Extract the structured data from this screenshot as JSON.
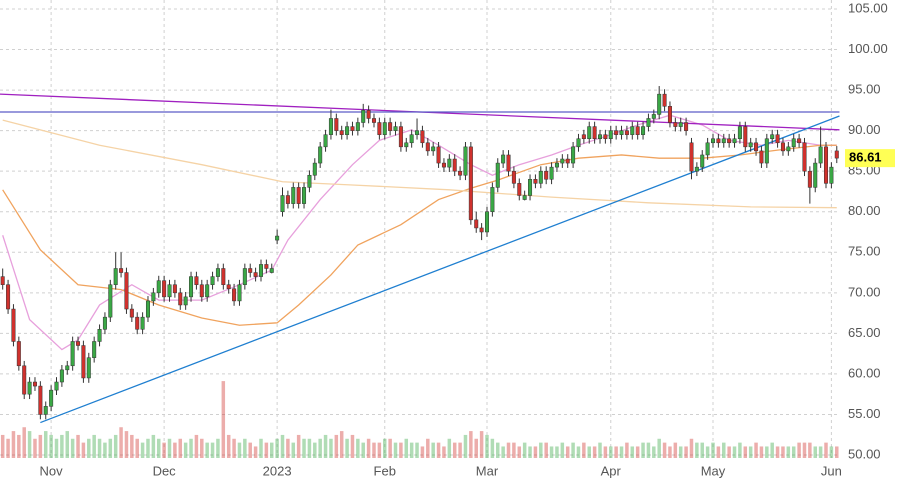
{
  "chart_data": {
    "type": "candlestick",
    "xlim": [
      -0.5,
      155.6
    ],
    "ylim": [
      50,
      105
    ],
    "yticks": [
      {
        "value": 50,
        "label": "50.00"
      },
      {
        "value": 55,
        "label": "55.00"
      },
      {
        "value": 60,
        "label": "60.00"
      },
      {
        "value": 65,
        "label": "65.00"
      },
      {
        "value": 70,
        "label": "70.00"
      },
      {
        "value": 75,
        "label": "75.00"
      },
      {
        "value": 80,
        "label": "80.00"
      },
      {
        "value": 85,
        "label": "85.00"
      },
      {
        "value": 90,
        "label": "90.00"
      },
      {
        "value": 95,
        "label": "95.00"
      },
      {
        "value": 100,
        "label": "100.00"
      },
      {
        "value": 105,
        "label": "105.00"
      }
    ],
    "xticks": [
      {
        "value": 9,
        "label": "Nov"
      },
      {
        "value": 30,
        "label": "Dec"
      },
      {
        "value": 51,
        "label": "2023"
      },
      {
        "value": 71,
        "label": "Feb"
      },
      {
        "value": 90,
        "label": "Mar"
      },
      {
        "value": 113,
        "label": "Apr"
      },
      {
        "value": 132,
        "label": "May"
      },
      {
        "value": 154,
        "label": "Jun"
      }
    ],
    "grid": true,
    "up_color": "#3aa845",
    "down_color": "#d0312d",
    "candles": [
      [
        72,
        73,
        70.4,
        71
      ],
      [
        71,
        71.6,
        67.4,
        68
      ],
      [
        68,
        68.6,
        63.4,
        64
      ],
      [
        64,
        64.6,
        60.4,
        61
      ],
      [
        61,
        61.6,
        56.9,
        57.5
      ],
      [
        57.5,
        59.6,
        56.9,
        59
      ],
      [
        59,
        59.6,
        57.9,
        58.5
      ],
      [
        58.5,
        59.1,
        54.4,
        55
      ],
      [
        55,
        56.6,
        54.4,
        56
      ],
      [
        56,
        58.6,
        55.4,
        58
      ],
      [
        58,
        59.6,
        57.4,
        59
      ],
      [
        59,
        61.1,
        58.4,
        60.5
      ],
      [
        60.5,
        61.6,
        59.9,
        61
      ],
      [
        61,
        64.6,
        60.4,
        64
      ],
      [
        64,
        64.6,
        62.9,
        63.5
      ],
      [
        63.5,
        64.1,
        58.9,
        59.5
      ],
      [
        59.5,
        62.6,
        58.9,
        62
      ],
      [
        62,
        64.6,
        61.4,
        64
      ],
      [
        64,
        66.1,
        63.4,
        65.5
      ],
      [
        65.5,
        67.6,
        64.9,
        67
      ],
      [
        67,
        71.6,
        66.4,
        71
      ],
      [
        71,
        75,
        70.4,
        73
      ],
      [
        73,
        75,
        71.9,
        72.5
      ],
      [
        72.5,
        73.1,
        67.4,
        68
      ],
      [
        68,
        68.6,
        66.4,
        67
      ],
      [
        67,
        67.6,
        64.9,
        65.5
      ],
      [
        65.5,
        67.6,
        64.9,
        67
      ],
      [
        67,
        69.6,
        66.4,
        69
      ],
      [
        69,
        70.6,
        68.4,
        70
      ],
      [
        70,
        72.1,
        69.4,
        71.5
      ],
      [
        71.5,
        72.1,
        68.9,
        69.5
      ],
      [
        69.5,
        71.6,
        68.9,
        71
      ],
      [
        71,
        71.6,
        69.4,
        70
      ],
      [
        70,
        70.6,
        67.9,
        68.5
      ],
      [
        68.5,
        70.1,
        67.9,
        69.5
      ],
      [
        69.5,
        72.6,
        68.9,
        72
      ],
      [
        72,
        72.6,
        70.4,
        71
      ],
      [
        71,
        71.6,
        68.9,
        69.5
      ],
      [
        69.5,
        71.6,
        68.9,
        71
      ],
      [
        71,
        72.6,
        70.4,
        72
      ],
      [
        72,
        73.6,
        71.4,
        73
      ],
      [
        73,
        73.6,
        70.4,
        71
      ],
      [
        71,
        71.6,
        69.9,
        70.5
      ],
      [
        70.5,
        71.1,
        68.4,
        69
      ],
      [
        69,
        71.6,
        68.4,
        71
      ],
      [
        71,
        73.6,
        70.4,
        73
      ],
      [
        73,
        73.6,
        71.9,
        72.5
      ],
      [
        72.5,
        73.1,
        71.4,
        72
      ],
      [
        72,
        74.1,
        71.4,
        73.5
      ],
      [
        73.5,
        74.1,
        72.4,
        73
      ],
      [
        72.5,
        73.6,
        72.4,
        73
      ],
      [
        76.5,
        77.8,
        76,
        77
      ],
      [
        80,
        83,
        79.4,
        82
      ],
      [
        82,
        82.6,
        80.4,
        81
      ],
      [
        81,
        83.6,
        80.4,
        83
      ],
      [
        83,
        83.6,
        80.4,
        81
      ],
      [
        81,
        83.6,
        80.4,
        83
      ],
      [
        83,
        85.1,
        82.4,
        84.5
      ],
      [
        84.5,
        86.6,
        83.9,
        86
      ],
      [
        86,
        88.6,
        85.4,
        88
      ],
      [
        88,
        90.1,
        87.4,
        89.5
      ],
      [
        89.5,
        92.6,
        88.9,
        91.5
      ],
      [
        91.5,
        92.1,
        89.4,
        90
      ],
      [
        90,
        90.6,
        88.9,
        89.5
      ],
      [
        89.5,
        91.1,
        88.9,
        90.5
      ],
      [
        90.5,
        91.1,
        89.4,
        90
      ],
      [
        90,
        91.6,
        89.4,
        91
      ],
      [
        91,
        93.3,
        90.4,
        92.5
      ],
      [
        92.5,
        93.1,
        90.9,
        91.5
      ],
      [
        91.5,
        92.1,
        90.4,
        91
      ],
      [
        91,
        91.6,
        88.9,
        89.5
      ],
      [
        89.5,
        91.6,
        88.9,
        91
      ],
      [
        91,
        91.6,
        89.4,
        90
      ],
      [
        90,
        91.1,
        89.4,
        90.5
      ],
      [
        90.5,
        91.1,
        87.4,
        88
      ],
      [
        88,
        89.1,
        87.4,
        88.5
      ],
      [
        88.5,
        90.1,
        87.9,
        89.5
      ],
      [
        89.5,
        91.5,
        88.9,
        90
      ],
      [
        90,
        90.6,
        87.9,
        88.5
      ],
      [
        88.5,
        89.1,
        86.9,
        87.5
      ],
      [
        87.5,
        88.6,
        86.9,
        88
      ],
      [
        88,
        88.6,
        85.4,
        86
      ],
      [
        86,
        86.6,
        84.9,
        85.5
      ],
      [
        85.5,
        87.1,
        84.9,
        86.5
      ],
      [
        86.5,
        87.1,
        84.4,
        85
      ],
      [
        85,
        85.6,
        83.9,
        84.5
      ],
      [
        84.5,
        88.6,
        83.9,
        88
      ],
      [
        88,
        88.6,
        78.4,
        79
      ],
      [
        79,
        80,
        77.4,
        78
      ],
      [
        78,
        78.6,
        76.5,
        77.5
      ],
      [
        77.5,
        80.6,
        76.9,
        80
      ],
      [
        80,
        83.6,
        79.4,
        83
      ],
      [
        83,
        86.6,
        82.4,
        86
      ],
      [
        86,
        87.6,
        85.4,
        87
      ],
      [
        87,
        87.6,
        84.4,
        85
      ],
      [
        85,
        85.6,
        82.9,
        83.5
      ],
      [
        83.5,
        84.1,
        81.4,
        82
      ],
      [
        81.5,
        82.6,
        81.4,
        82
      ],
      [
        82,
        84.6,
        81.4,
        84
      ],
      [
        84,
        84.6,
        82.9,
        83.5
      ],
      [
        83.5,
        85.6,
        82.9,
        85
      ],
      [
        85,
        85.6,
        83.4,
        84
      ],
      [
        84,
        86.1,
        83.4,
        85.5
      ],
      [
        85.5,
        86.6,
        84.9,
        86
      ],
      [
        86,
        87.1,
        85.4,
        86.5
      ],
      [
        86.5,
        87.1,
        85.4,
        86
      ],
      [
        86,
        88.6,
        85.4,
        88
      ],
      [
        88,
        89.6,
        87.4,
        89
      ],
      [
        89.5,
        90.1,
        88.4,
        89
      ],
      [
        89,
        91.1,
        88.4,
        90.5
      ],
      [
        90.5,
        91.1,
        88.4,
        89
      ],
      [
        89,
        90.1,
        88.4,
        89.5
      ],
      [
        89.5,
        90.1,
        88.4,
        89
      ],
      [
        89,
        90.6,
        88.4,
        90
      ],
      [
        90,
        90.6,
        88.9,
        89.5
      ],
      [
        89.5,
        90.6,
        88.9,
        90
      ],
      [
        90,
        90.6,
        88.9,
        89.5
      ],
      [
        89.5,
        91.1,
        88.9,
        90.5
      ],
      [
        90.5,
        91.1,
        88.9,
        89.5
      ],
      [
        89.5,
        91.1,
        88.9,
        90.5
      ],
      [
        90.5,
        92.1,
        89.9,
        91.5
      ],
      [
        91.5,
        92.6,
        90.9,
        92
      ],
      [
        92,
        95.5,
        91.4,
        94.5
      ],
      [
        94.5,
        95.1,
        92.4,
        93
      ],
      [
        93,
        93.6,
        90.4,
        91
      ],
      [
        91,
        91.6,
        89.9,
        90.5
      ],
      [
        90.5,
        91.6,
        89.9,
        91
      ],
      [
        91,
        91.6,
        89.4,
        90
      ],
      [
        88.5,
        89.1,
        84,
        85
      ],
      [
        85,
        86.1,
        84.4,
        85.5
      ],
      [
        85.5,
        87.6,
        84.9,
        87
      ],
      [
        87,
        89.1,
        86.4,
        88.5
      ],
      [
        88.5,
        89.6,
        87.9,
        89
      ],
      [
        89,
        89.6,
        87.9,
        88.5
      ],
      [
        88.5,
        89.6,
        87.9,
        89
      ],
      [
        89,
        89.6,
        87.9,
        88.5
      ],
      [
        88.5,
        89.6,
        87.9,
        89
      ],
      [
        89,
        91.1,
        88.4,
        90.5
      ],
      [
        90.5,
        91.1,
        87.4,
        88
      ],
      [
        88,
        89.1,
        87.4,
        88.5
      ],
      [
        88.5,
        89.1,
        86.9,
        87.5
      ],
      [
        87.5,
        88.1,
        85.4,
        86
      ],
      [
        86,
        89.6,
        85.4,
        89
      ],
      [
        89,
        90.1,
        88.4,
        89.5
      ],
      [
        89.5,
        90.1,
        87.9,
        88.5
      ],
      [
        88.5,
        89.1,
        86.9,
        87.5
      ],
      [
        87.5,
        88.6,
        86.9,
        88
      ],
      [
        88,
        89.6,
        87.4,
        89
      ],
      [
        89,
        89.6,
        87.9,
        88.5
      ],
      [
        88.5,
        89.1,
        84.4,
        85
      ],
      [
        85,
        85.6,
        81,
        83
      ],
      [
        83,
        86.6,
        82.4,
        86
      ],
      [
        86,
        90.5,
        85.4,
        88
      ],
      [
        88,
        88.6,
        82.9,
        83.5
      ],
      [
        83.5,
        86.1,
        82.9,
        85.5
      ],
      [
        87.5,
        88.1,
        86,
        86.61
      ]
    ],
    "volume": [
      6,
      5,
      7,
      6,
      8,
      7,
      5,
      6,
      7,
      6,
      5,
      6,
      7,
      5,
      6,
      4,
      5,
      6,
      5,
      4,
      5,
      6,
      8,
      7,
      6,
      5,
      4,
      5,
      6,
      5,
      4,
      5,
      4,
      5,
      4,
      5,
      6,
      5,
      4,
      4,
      5,
      20,
      6,
      5,
      4,
      5,
      4,
      3,
      5,
      4,
      4,
      5,
      6,
      5,
      4,
      6,
      5,
      5,
      4,
      5,
      6,
      5,
      6,
      7,
      5,
      6,
      5,
      4,
      5,
      4,
      4,
      5,
      5,
      4,
      4,
      5,
      4,
      4,
      3,
      5,
      4,
      4,
      3,
      5,
      4,
      4,
      6,
      7,
      5,
      7,
      6,
      5,
      4,
      3,
      4,
      4,
      3,
      4,
      3,
      3,
      4,
      4,
      3,
      3,
      4,
      3,
      4,
      3,
      4,
      3,
      3,
      4,
      3,
      3,
      3,
      3,
      4,
      3,
      3,
      4,
      4,
      3,
      5,
      4,
      3,
      4,
      3,
      3,
      5,
      4,
      4,
      3,
      4,
      3,
      4,
      3,
      3,
      4,
      3,
      3,
      4,
      3,
      3,
      4,
      3,
      3,
      3,
      3,
      4,
      4,
      4,
      3,
      3,
      4,
      3,
      3
    ],
    "volume_max": 26,
    "overlays": [
      {
        "color": "#e7a0dc",
        "x": [
          0,
          5,
          11,
          14,
          18,
          24,
          29,
          37,
          44,
          50,
          53,
          59,
          65,
          70,
          76,
          81,
          87,
          91,
          96,
          102,
          107,
          113,
          118,
          124,
          130,
          135,
          141,
          146,
          152,
          155
        ],
        "values": [
          77.1,
          66.7,
          63,
          64.2,
          68.5,
          71,
          69.1,
          69.1,
          71,
          72.8,
          76.5,
          81.5,
          85.8,
          88.8,
          90.1,
          88.2,
          85.8,
          84.5,
          85.8,
          87,
          88.2,
          89.5,
          90.7,
          91.9,
          90.7,
          88.8,
          88.2,
          88.8,
          88.2,
          88.2
        ]
      },
      {
        "color": "#f0a35e",
        "x": [
          0,
          7,
          14,
          22,
          29,
          37,
          44,
          51,
          55,
          61,
          66,
          74,
          81,
          87,
          92,
          100,
          107,
          115,
          122,
          130,
          137,
          144,
          152,
          155
        ],
        "values": [
          82.7,
          75.3,
          71,
          70.4,
          68.5,
          66.9,
          66,
          66.3,
          68.5,
          72.2,
          75.9,
          78.4,
          81.5,
          82.9,
          83.9,
          85.8,
          86.6,
          87,
          86.6,
          86.6,
          87,
          87.6,
          88.2,
          88.2
        ]
      },
      {
        "color": "#f5d3a6",
        "x": [
          0,
          18,
          37,
          52,
          65,
          83,
          102,
          120,
          139,
          155
        ],
        "values": [
          91.3,
          88.2,
          85.8,
          83.7,
          83.3,
          82.7,
          81.8,
          81.1,
          80.6,
          80.5
        ]
      },
      {
        "color": "#a020c0",
        "x": [
          -0.5,
          155.5
        ],
        "values": [
          94.5,
          90.1
        ]
      },
      {
        "color": "#1f7fd0",
        "x": [
          7,
          155.5
        ],
        "values": [
          54,
          91.8
        ]
      },
      {
        "color": "#5c5cc8",
        "x": [
          -0.5,
          155.5
        ],
        "values": [
          92.3,
          92.3
        ]
      }
    ],
    "last_price_color": "#ffff55"
  }
}
